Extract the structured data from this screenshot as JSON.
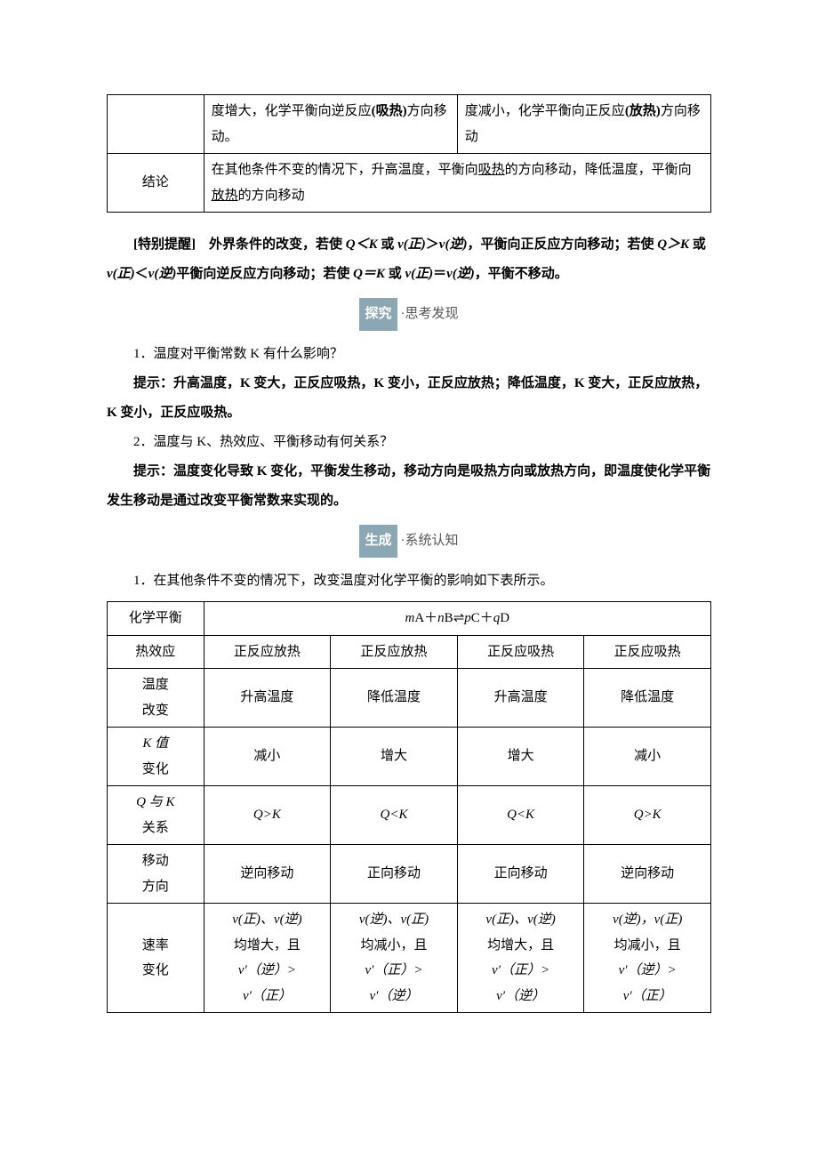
{
  "table1": {
    "row1": {
      "cell_left": "度增大，化学平衡向逆反应(吸热)方向移动。",
      "cell_right": "度减小，化学平衡向正反应(放热)方向移动"
    },
    "row2": {
      "label": "结论",
      "text_prefix": "在其他条件不变的情况下，升高温度，平衡向",
      "u1": "吸热",
      "mid1": "的方向移动，降低温度，平衡向",
      "u2": "放热",
      "suffix": "的方向移动"
    }
  },
  "reminder": {
    "label": "[特别提醒]　",
    "t1": "外界条件的改变，若使 ",
    "qk_lt": "Q＜K",
    "t2": " 或 ",
    "v_fwd": "v(正)",
    "gt": "＞",
    "v_rev": "v(逆)",
    "t3": "，平衡向正反应方向移动；若使 ",
    "qk_gt": "Q＞K",
    "lt": "＜",
    "t4": "平衡向逆反应方向移动；若使 ",
    "qk_eq": "Q＝K",
    "eq": "＝",
    "t5": "，平衡不移动。"
  },
  "badge1": {
    "title": "探究",
    "suffix": "·思考发现"
  },
  "q1": "1．温度对平衡常数 K 有什么影响？",
  "a1": "提示：升高温度，K 变大，正反应吸热，K 变小，正反应放热；降低温度，K 变大，正反应放热，K 变小，正反应吸热。",
  "q2": "2．温度与 K、热效应、平衡移动有何关系？",
  "a2": "提示：温度变化导致 K 变化，平衡发生移动，移动方向是吸热方向或放热方向，即温度使化学平衡发生移动是通过改变平衡常数来实现的。",
  "badge2": {
    "title": "生成",
    "suffix": "·系统认知"
  },
  "lead2": "1．在其他条件不变的情况下，改变温度对化学平衡的影响如下表所示。",
  "table2": {
    "row_headers": [
      "化学平衡",
      "热效应",
      "温度改变",
      "K 值变化",
      "Q 与 K关系",
      "移动方向",
      "速率变化"
    ],
    "equation_parts": {
      "m": "m",
      "A": "A",
      "plus": "＋",
      "n": "n",
      "B": "B",
      "eq": "⇌",
      "p": "p",
      "C": "C",
      "q": "q",
      "D": "D"
    },
    "cols": {
      "heat": [
        "正反应放热",
        "正反应放热",
        "正反应吸热",
        "正反应吸热"
      ],
      "temp": [
        "升高温度",
        "降低温度",
        "升高温度",
        "降低温度"
      ],
      "k": [
        "减小",
        "增大",
        "增大",
        "减小"
      ],
      "qk": [
        "Q>K",
        "Q<K",
        "Q<K",
        "Q>K"
      ],
      "shift": [
        "逆向移动",
        "正向移动",
        "正向移动",
        "逆向移动"
      ],
      "rate_a": [
        "v(正)、v(逆)",
        "v(逆)、v(正)",
        "v(正)、v(逆)",
        "v(逆)，v(正)"
      ],
      "rate_b": [
        "均增大，且",
        "均减小，且",
        "均增大，且",
        "均减小，且"
      ],
      "rate_c": [
        "v′（逆）>",
        "v′（正）>",
        "v′（正）>",
        "v′（逆）>"
      ],
      "rate_d": [
        "v′（正）",
        "v′（逆）",
        "v′（逆）",
        "v′（正）"
      ]
    }
  },
  "labels": {
    "row_eq": "化学平衡",
    "row_heat": "热效应",
    "row_temp_l1": "温度",
    "row_temp_l2": "改变",
    "row_k_l1": "K 值",
    "row_k_l2": "变化",
    "row_qk_l1": "Q 与 K",
    "row_qk_l2": "关系",
    "row_shift_l1": "移动",
    "row_shift_l2": "方向",
    "row_rate_l1": "速率",
    "row_rate_l2": "变化"
  }
}
